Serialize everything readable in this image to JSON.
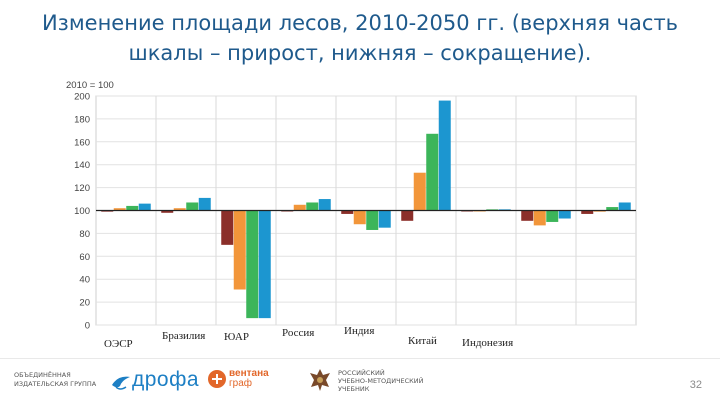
{
  "slide": {
    "title_line1": "Изменение площади лесов, 2010-2050 гг. (верхняя часть",
    "title_line2": "шкалы – прирост, нижняя – сокращение).",
    "page_number": "32"
  },
  "footer": {
    "publisher_line1": "ОБЪЕДИНЁННАЯ",
    "publisher_line2": "ИЗДАТЕЛЬСКАЯ ГРУППА",
    "drofa": "дрофа",
    "ventana_line1": "вентана",
    "ventana_line2": "граф",
    "rus_line1": "РОССИЙСКИЙ",
    "rus_line2": "УЧЕБНО-МЕТОДИЧЕСКИЙ",
    "rus_line3": "УЧЕБНИК"
  },
  "chart_data": {
    "type": "bar",
    "axis_unit_label": "2010 = 100",
    "ylim": [
      0,
      200
    ],
    "yticks": [
      0,
      20,
      40,
      60,
      80,
      100,
      120,
      140,
      160,
      180,
      200
    ],
    "baseline": 100,
    "grid": true,
    "categories": [
      "ОЭСР",
      "Бразилия",
      "ЮАР",
      "Россия",
      "Индия",
      "Китай",
      "Индонезия",
      "",
      ""
    ],
    "series": [
      {
        "color": "#8b2f2a",
        "values": [
          99,
          98,
          70,
          100,
          97,
          91,
          100,
          91,
          97
        ]
      },
      {
        "color": "#f2963a",
        "values": [
          102,
          102,
          31,
          105,
          88,
          133,
          100,
          87,
          99
        ]
      },
      {
        "color": "#3cb55a",
        "values": [
          104,
          107,
          6,
          107,
          83,
          167,
          101,
          90,
          103
        ]
      },
      {
        "color": "#1c96d0",
        "values": [
          106,
          111,
          6,
          110,
          85,
          196,
          101,
          93,
          107
        ]
      }
    ]
  }
}
